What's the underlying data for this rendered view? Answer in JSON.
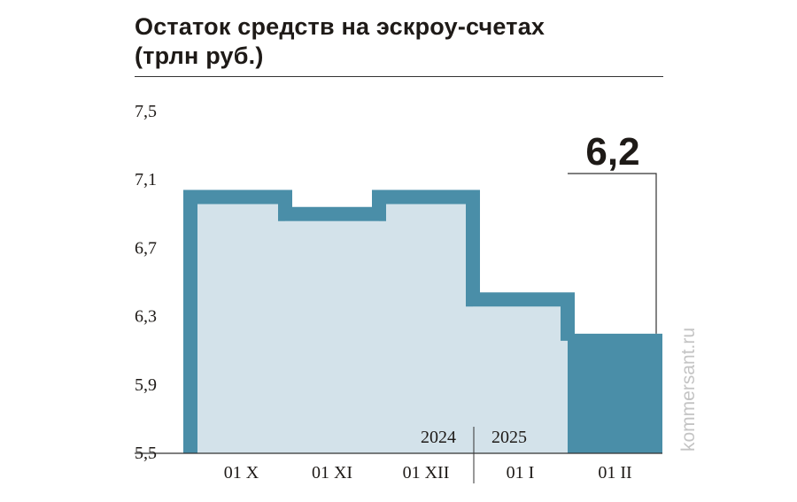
{
  "title": {
    "line1": "Остаток средств на эскроу-счетах",
    "line2": "(трлн руб.)"
  },
  "watermark": "kommersant.ru",
  "colors": {
    "outline": "#4a8ea8",
    "fill_light": "#d3e2ea",
    "fill_dark": "#4a8ea8",
    "text": "#1e1a17"
  },
  "chart_data": {
    "type": "bar",
    "categories": [
      "01 X",
      "01 XI",
      "01 XII",
      "01 I",
      "01 II"
    ],
    "values": [
      7.0,
      6.9,
      7.0,
      6.4,
      6.2
    ],
    "yticks": [
      "7,5",
      "7,1",
      "6,7",
      "6,3",
      "5,9",
      "5,5"
    ],
    "ylim": [
      5.5,
      7.5
    ],
    "years": [
      "2024",
      "2025"
    ],
    "highlight_label": "6,2",
    "highlight_index": 4
  }
}
